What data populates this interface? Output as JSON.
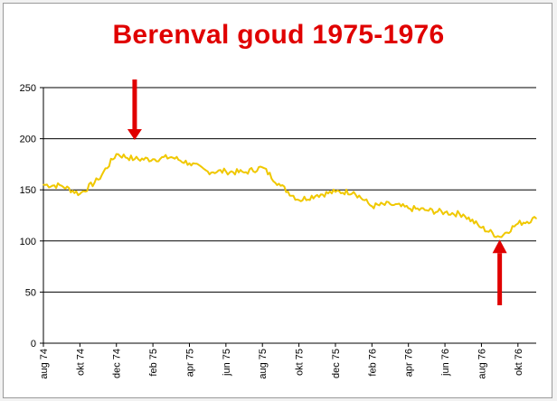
{
  "chart_data": {
    "type": "line",
    "title": "Berenval goud 1975-1976",
    "xlabel": "",
    "ylabel": "",
    "ylim": [
      0,
      250
    ],
    "yticks": [
      0,
      50,
      100,
      150,
      200,
      250
    ],
    "xticks": [
      "aug 74",
      "okt 74",
      "dec 74",
      "feb 75",
      "apr 75",
      "jun 75",
      "aug 75",
      "okt 75",
      "dec 75",
      "feb 76",
      "apr 76",
      "jun 76",
      "aug 76",
      "okt 76"
    ],
    "grid": "horizontal",
    "legend": "none",
    "line_color": "#f0c800",
    "arrow_color": "#e00000",
    "series": [
      {
        "x": [
          "aug 74",
          "sep 74",
          "okt 74",
          "nov 74",
          "dec 74",
          "jan 75",
          "feb 75",
          "mrt 75",
          "apr 75",
          "mei 75",
          "jun 75",
          "jul 75",
          "aug 75",
          "sep 75",
          "okt 75",
          "nov 75",
          "dec 75",
          "jan 76",
          "feb 76",
          "mrt 76",
          "apr 76",
          "mei 76",
          "jun 76",
          "jul 76",
          "aug 76",
          "sep 76",
          "okt 76",
          "nov 76"
        ],
        "values": [
          155,
          154,
          146,
          160,
          185,
          180,
          180,
          182,
          176,
          168,
          168,
          167,
          172,
          154,
          140,
          145,
          148,
          148,
          134,
          136,
          132,
          130,
          128,
          126,
          113,
          104,
          117,
          122
        ]
      }
    ],
    "annotations": [
      {
        "type": "arrow-down",
        "x": "jan 75",
        "value": 197
      },
      {
        "type": "arrow-up",
        "x": "sep 76",
        "value": 104
      }
    ]
  }
}
